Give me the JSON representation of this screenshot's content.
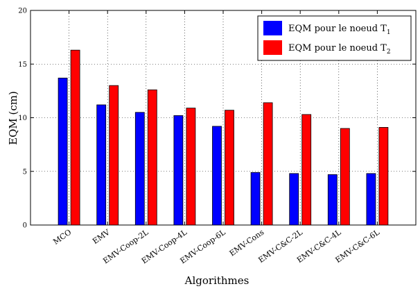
{
  "chart_data": {
    "type": "bar",
    "title": "",
    "xlabel": "Algorithmes",
    "ylabel": "EQM (cm)",
    "ylim": [
      0,
      20
    ],
    "yticks": [
      "0",
      "5",
      "10",
      "15",
      "20"
    ],
    "grid": true,
    "legend_position": "top-right",
    "categories": [
      "MCO",
      "EMV",
      "EMV-Coop-2L",
      "EMV-Coop-4L",
      "EMV-Coop-6L",
      "EMV-Cons",
      "EMV-C&C-2L",
      "EMV-C&C-4L",
      "EMV-C&C-6L"
    ],
    "series": [
      {
        "name": "EQM pour le noeud T",
        "subscript": "1",
        "color": "#0000ff",
        "values": [
          13.7,
          11.2,
          10.5,
          10.2,
          9.2,
          4.9,
          4.8,
          4.7,
          4.8
        ]
      },
      {
        "name": "EQM pour le noeud T",
        "subscript": "2",
        "color": "#ff0000",
        "values": [
          16.3,
          13.0,
          12.6,
          10.9,
          10.7,
          11.4,
          10.3,
          9.0,
          9.1
        ]
      }
    ]
  }
}
